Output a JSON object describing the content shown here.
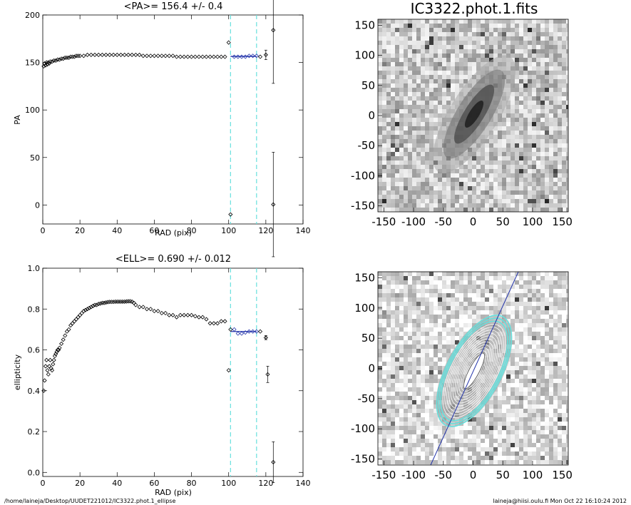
{
  "footer": {
    "left": "/home/laineja/Desktop/UUDET221012/IC3322.phot.1_ellipse",
    "right": "laineja@hiisi.oulu.fi  Mon Oct 22 16:10:24 2012"
  },
  "image_panel": {
    "title": "IC3322.phot.1.fits",
    "ticks": [
      "-150",
      "-100",
      "-50",
      "0",
      "50",
      "100",
      "150"
    ]
  },
  "colors": {
    "markers": "#000000",
    "fit": "#2233aa",
    "window": "#66e0dd"
  },
  "chart_data": [
    {
      "type": "scatter",
      "title": "<PA>= 156.4 +/-   0.4",
      "xlabel": "RAD (pix)",
      "ylabel": "PA",
      "xlim": [
        0,
        140
      ],
      "ylim": [
        -20,
        200
      ],
      "xticks": [
        "0",
        "20",
        "40",
        "60",
        "80",
        "100",
        "120",
        "140"
      ],
      "yticks": [
        "0",
        "50",
        "100",
        "150",
        "200"
      ],
      "window": [
        101,
        115
      ],
      "fit_mean": 156.4,
      "series": [
        {
          "x": [
            0.5,
            1,
            1.5,
            2,
            2.5,
            3,
            3.5,
            4,
            5,
            6,
            7,
            8,
            9,
            10,
            11,
            12,
            13,
            14,
            15,
            16,
            17,
            18,
            19,
            20,
            22,
            24,
            26,
            28,
            30,
            32,
            34,
            36,
            38,
            40,
            42,
            44,
            46,
            48,
            50,
            52,
            54,
            56,
            58,
            60,
            62,
            64,
            66,
            68,
            70,
            72,
            74,
            76,
            78,
            80,
            82,
            84,
            86,
            88,
            90,
            92,
            94,
            96,
            98
          ],
          "y": [
            146,
            149,
            147,
            150,
            148,
            150,
            149,
            151,
            151,
            152,
            152,
            153,
            153,
            154,
            154,
            155,
            155,
            155,
            156,
            156,
            156,
            157,
            157,
            157,
            157,
            158,
            158,
            158,
            158,
            158,
            158,
            158,
            158,
            158,
            158,
            158,
            158,
            158,
            158,
            158,
            157,
            157,
            157,
            157,
            157,
            157,
            157,
            157,
            157,
            156,
            156,
            156,
            156,
            156,
            156,
            156,
            156,
            156,
            156,
            156,
            156,
            156,
            156
          ]
        },
        {
          "x": [
            100,
            101,
            103,
            105,
            107,
            109,
            111,
            113,
            115,
            117,
            120,
            124
          ],
          "y": [
            171,
            -10,
            156,
            156,
            156,
            156,
            157,
            157,
            157,
            156,
            158,
            0.5
          ],
          "err": [
            0,
            0,
            0,
            0,
            0,
            0,
            0,
            0,
            0,
            0,
            5,
            55
          ]
        },
        {
          "x": [
            124
          ],
          "y": [
            184
          ],
          "err": [
            56
          ]
        }
      ]
    },
    {
      "type": "scatter",
      "title": "<ELL>= 0.690 +/-  0.012",
      "xlabel": "RAD (pix)",
      "ylabel": "ellipticity",
      "xlim": [
        0,
        140
      ],
      "ylim": [
        -0.02,
        1.0
      ],
      "xticks": [
        "0",
        "20",
        "40",
        "60",
        "80",
        "100",
        "120",
        "140"
      ],
      "yticks": [
        "0.0",
        "0.2",
        "0.4",
        "0.6",
        "0.8",
        "1.0"
      ],
      "window": [
        101,
        115
      ],
      "fit_mean": 0.69,
      "series": [
        {
          "x": [
            0.5,
            1,
            1.5,
            2,
            2.5,
            3,
            3.5,
            4,
            4.5,
            5,
            5.5,
            6,
            6.5,
            7,
            7.5,
            8,
            8.5,
            9,
            10,
            11,
            12,
            13,
            14,
            15,
            16,
            17,
            18,
            19,
            20,
            21,
            22,
            23,
            24,
            25,
            26,
            27,
            28,
            29,
            30,
            31,
            32,
            33,
            34,
            35,
            36,
            37,
            38,
            39,
            40,
            41,
            42,
            43,
            44,
            45,
            46,
            47,
            48,
            49,
            50,
            52,
            54,
            56,
            58,
            60,
            62,
            64,
            66,
            68,
            70,
            72,
            74,
            76,
            78,
            80,
            82,
            84,
            86,
            88,
            90,
            92,
            94,
            96,
            98
          ],
          "y": [
            0.4,
            0.45,
            0.52,
            0.55,
            0.5,
            0.48,
            0.52,
            0.55,
            0.51,
            0.5,
            0.53,
            0.55,
            0.57,
            0.58,
            0.59,
            0.6,
            0.6,
            0.61,
            0.63,
            0.65,
            0.67,
            0.69,
            0.7,
            0.72,
            0.73,
            0.74,
            0.75,
            0.76,
            0.77,
            0.78,
            0.79,
            0.795,
            0.8,
            0.805,
            0.81,
            0.815,
            0.82,
            0.82,
            0.825,
            0.827,
            0.83,
            0.83,
            0.832,
            0.834,
            0.835,
            0.835,
            0.835,
            0.836,
            0.836,
            0.836,
            0.836,
            0.836,
            0.836,
            0.837,
            0.838,
            0.838,
            0.836,
            0.83,
            0.82,
            0.81,
            0.81,
            0.8,
            0.8,
            0.79,
            0.79,
            0.78,
            0.78,
            0.77,
            0.77,
            0.76,
            0.77,
            0.77,
            0.77,
            0.77,
            0.765,
            0.76,
            0.76,
            0.75,
            0.73,
            0.73,
            0.73,
            0.74,
            0.74
          ]
        },
        {
          "x": [
            100,
            101,
            103,
            105,
            107,
            109,
            111,
            113,
            115,
            117,
            120,
            121,
            124
          ],
          "y": [
            0.5,
            0.7,
            0.7,
            0.68,
            0.68,
            0.685,
            0.69,
            0.69,
            0.69,
            0.69,
            0.66,
            0.48,
            0.05
          ],
          "err": [
            0,
            0,
            0,
            0,
            0,
            0,
            0,
            0,
            0,
            0,
            0.01,
            0.04,
            0.1
          ]
        }
      ]
    }
  ]
}
